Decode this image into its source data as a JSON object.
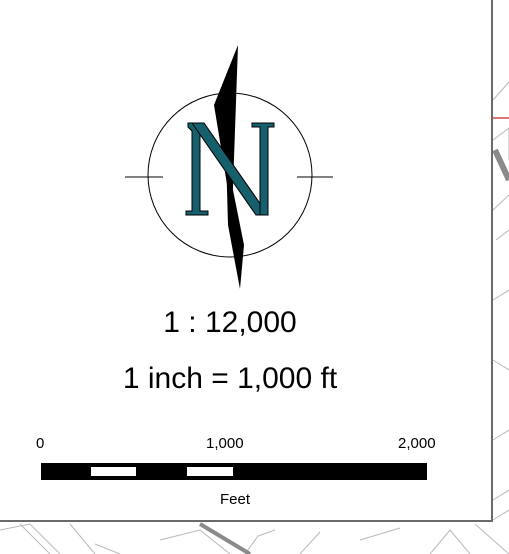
{
  "map": {
    "north_letter": "N",
    "scale_ratio": "1 : 12,000",
    "scale_equivalence": "1 inch = 1,000 ft",
    "scale_bar": {
      "ticks": [
        "0",
        "1,000",
        "2,000"
      ],
      "units": "Feet"
    }
  },
  "colors": {
    "north_letter_fill": "#16606e",
    "arrow_fill": "#000000",
    "map_lines": "#b8b8b8",
    "road": "#8a8a8a",
    "boundary_red": "#d04848"
  }
}
